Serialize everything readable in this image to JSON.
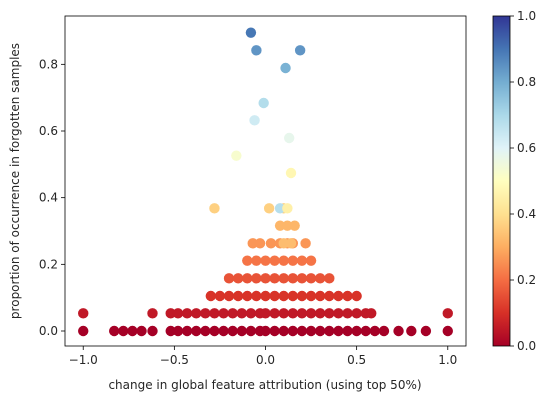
{
  "chart_data": {
    "type": "scatter",
    "xlabel": "change in global feature attribution (using top 50%)",
    "ylabel": "proportion of occurrence in forgotten samples",
    "xlim": [
      -1.1,
      1.1
    ],
    "ylim": [
      -0.045,
      0.945
    ],
    "x_ticks": [
      -1.0,
      -0.5,
      0.0,
      0.5,
      1.0
    ],
    "x_tick_labels": [
      "−1.0",
      "−0.5",
      "0.0",
      "0.5",
      "1.0"
    ],
    "y_ticks": [
      0.0,
      0.2,
      0.4,
      0.6,
      0.8
    ],
    "y_tick_labels": [
      "0.0",
      "0.2",
      "0.4",
      "0.6",
      "0.8"
    ],
    "colorbar": {
      "colormap": "RdYlBu",
      "range": [
        0.0,
        1.0
      ],
      "ticks": [
        0.0,
        0.2,
        0.4,
        0.6,
        0.8,
        1.0
      ],
      "tick_labels": [
        "0.0",
        "0.2",
        "0.4",
        "0.6",
        "0.8",
        "1.0"
      ]
    },
    "colormap_stops": [
      "#a50026",
      "#d73027",
      "#f46d43",
      "#fdae61",
      "#fee090",
      "#ffffbf",
      "#e0f3f8",
      "#abd9e9",
      "#74add1",
      "#4575b4",
      "#313695"
    ],
    "grid": false,
    "legend": "none",
    "note": "point color value equals its y value",
    "rows": [
      {
        "y": 0.0,
        "x": [
          -1.0,
          -0.83,
          -0.78,
          -0.73,
          -0.68,
          -0.62,
          -0.52,
          -0.48,
          -0.43,
          -0.38,
          -0.33,
          -0.28,
          -0.23,
          -0.18,
          -0.13,
          -0.08,
          -0.03,
          0.0,
          0.05,
          0.1,
          0.15,
          0.2,
          0.25,
          0.3,
          0.35,
          0.4,
          0.45,
          0.5,
          0.55,
          0.6,
          0.65,
          0.73,
          0.8,
          0.88,
          1.0
        ]
      },
      {
        "y": 0.053,
        "x": [
          -1.0,
          -0.62,
          -0.52,
          -0.48,
          -0.43,
          -0.38,
          -0.33,
          -0.28,
          -0.23,
          -0.18,
          -0.13,
          -0.08,
          -0.03,
          0.0,
          0.05,
          0.1,
          0.15,
          0.2,
          0.25,
          0.3,
          0.35,
          0.4,
          0.45,
          0.5,
          0.55,
          0.58,
          1.0
        ]
      },
      {
        "y": 0.105,
        "x": [
          -0.3,
          -0.25,
          -0.2,
          -0.15,
          -0.1,
          -0.05,
          0.0,
          0.05,
          0.1,
          0.15,
          0.2,
          0.25,
          0.3,
          0.35,
          0.4,
          0.45,
          0.5
        ]
      },
      {
        "y": 0.158,
        "x": [
          -0.2,
          -0.15,
          -0.1,
          -0.05,
          0.0,
          0.05,
          0.1,
          0.15,
          0.2,
          0.25,
          0.3,
          0.35
        ]
      },
      {
        "y": 0.211,
        "x": [
          -0.1,
          -0.05,
          0.0,
          0.05,
          0.1,
          0.15,
          0.2,
          0.25
        ]
      },
      {
        "y": 0.263,
        "x": [
          -0.07,
          -0.03,
          0.03,
          0.08,
          0.12,
          0.15,
          0.22
        ]
      },
      {
        "y": 0.316,
        "x": [
          0.08,
          0.12,
          0.16
        ]
      },
      {
        "y": 0.368,
        "x": [
          -0.28,
          0.02,
          0.1
        ]
      },
      {
        "y": 0.474,
        "x": [
          0.14
        ]
      },
      {
        "y": 0.526,
        "x": [
          -0.16
        ]
      },
      {
        "y": 0.579,
        "x": [
          0.13
        ]
      },
      {
        "y": 0.632,
        "x": [
          -0.06
        ]
      },
      {
        "y": 0.684,
        "x": [
          -0.01
        ]
      },
      {
        "y": 0.789,
        "x": [
          0.11
        ]
      },
      {
        "y": 0.842,
        "x": [
          -0.05,
          0.19
        ]
      },
      {
        "y": 0.895,
        "x": [
          -0.08
        ]
      }
    ],
    "points": [
      {
        "x": 0.08,
        "y": 0.368,
        "c": 0.68
      },
      {
        "x": 0.12,
        "y": 0.368,
        "c": 0.45
      },
      {
        "x": 0.1,
        "y": 0.263,
        "c": 0.33
      },
      {
        "x": 0.14,
        "y": 0.263,
        "c": 0.33
      }
    ]
  }
}
